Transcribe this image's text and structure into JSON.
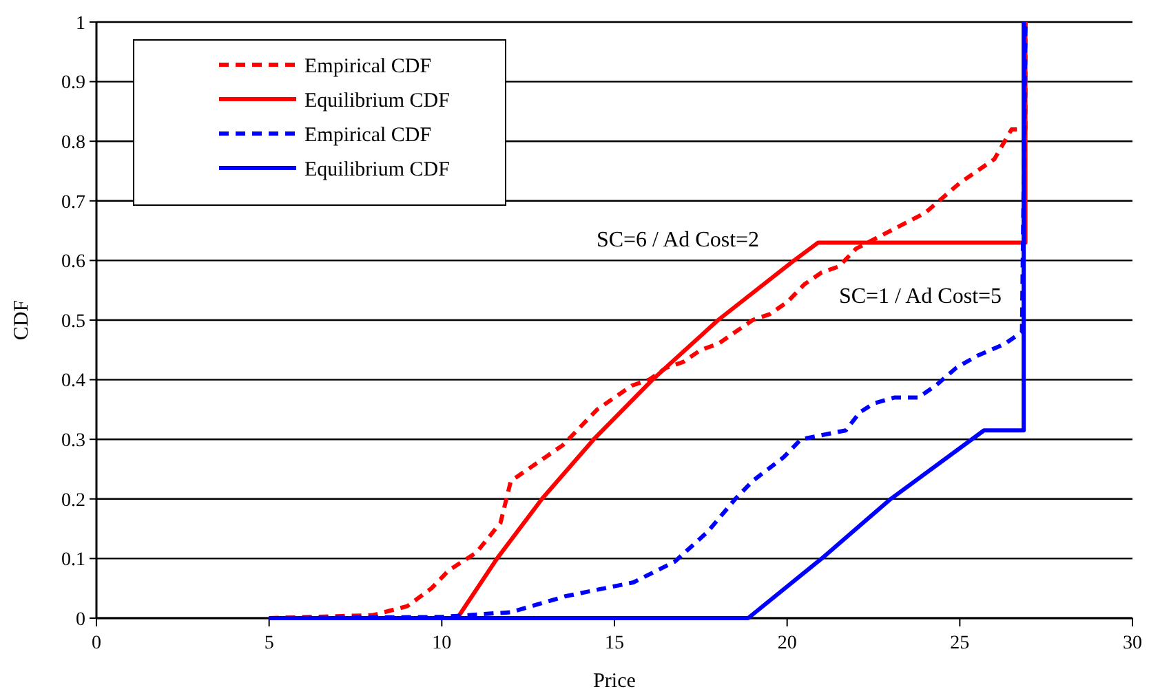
{
  "chart_data": {
    "type": "line",
    "xlabel": "Price",
    "ylabel": "CDF",
    "xlim": [
      0,
      30
    ],
    "xticks": [
      0,
      5,
      10,
      15,
      20,
      25,
      30
    ],
    "ylim": [
      0,
      1
    ],
    "yticks": [
      0,
      0.1,
      0.2,
      0.3,
      0.4,
      0.5,
      0.6,
      0.7,
      0.8,
      0.9,
      1
    ],
    "grid": "y",
    "legend": "top left",
    "annotations": [
      "SC=6 / Ad Cost=2",
      "SC=1 / Ad Cost=5"
    ],
    "series": [
      {
        "name": "Empirical CDF",
        "color": "#ff0000",
        "line_style": "dashed",
        "x": [
          5,
          8,
          9,
          9.7,
          10.2,
          11,
          11.7,
          12,
          12.5,
          13,
          13.5,
          14,
          14.5,
          15,
          15.5,
          16,
          16.5,
          17,
          17.5,
          18,
          18.5,
          19,
          19.5,
          20,
          20.5,
          21,
          21.5,
          22,
          23,
          24,
          25,
          26,
          26.5,
          26.9,
          26.9
        ],
        "values": [
          0,
          0.005,
          0.02,
          0.05,
          0.08,
          0.11,
          0.16,
          0.23,
          0.25,
          0.27,
          0.29,
          0.32,
          0.35,
          0.37,
          0.39,
          0.4,
          0.42,
          0.43,
          0.45,
          0.46,
          0.48,
          0.5,
          0.51,
          0.53,
          0.56,
          0.58,
          0.59,
          0.62,
          0.65,
          0.68,
          0.73,
          0.77,
          0.82,
          0.82,
          1
        ]
      },
      {
        "name": "Equilibrium CDF",
        "color": "#ff0000",
        "line_style": "solid",
        "x": [
          10.45,
          11.6,
          12.9,
          14.4,
          16.1,
          18,
          20.2,
          20.9,
          26.9,
          26.9
        ],
        "values": [
          0,
          0.1,
          0.2,
          0.3,
          0.4,
          0.5,
          0.6,
          0.63,
          0.63,
          1
        ]
      },
      {
        "name": "Empirical CDF",
        "color": "#0000ff",
        "line_style": "dashed",
        "x": [
          5,
          10,
          12,
          13.6,
          15.55,
          16.75,
          17.7,
          18.5,
          19,
          19.9,
          20.4,
          21.7,
          22.1,
          22.5,
          23.1,
          23.8,
          24.3,
          24.9,
          25.5,
          26.3,
          26.8,
          26.9
        ],
        "values": [
          0,
          0.002,
          0.01,
          0.037,
          0.06,
          0.095,
          0.145,
          0.2,
          0.23,
          0.27,
          0.3,
          0.315,
          0.345,
          0.36,
          0.37,
          0.37,
          0.39,
          0.42,
          0.44,
          0.46,
          0.48,
          1
        ]
      },
      {
        "name": "Equilibrium CDF",
        "color": "#0000ff",
        "line_style": "solid",
        "x": [
          5,
          18.87,
          21,
          23,
          25.7,
          26.85,
          26.85
        ],
        "values": [
          0,
          0,
          0.1,
          0.2,
          0.315,
          0.315,
          1
        ]
      }
    ]
  }
}
